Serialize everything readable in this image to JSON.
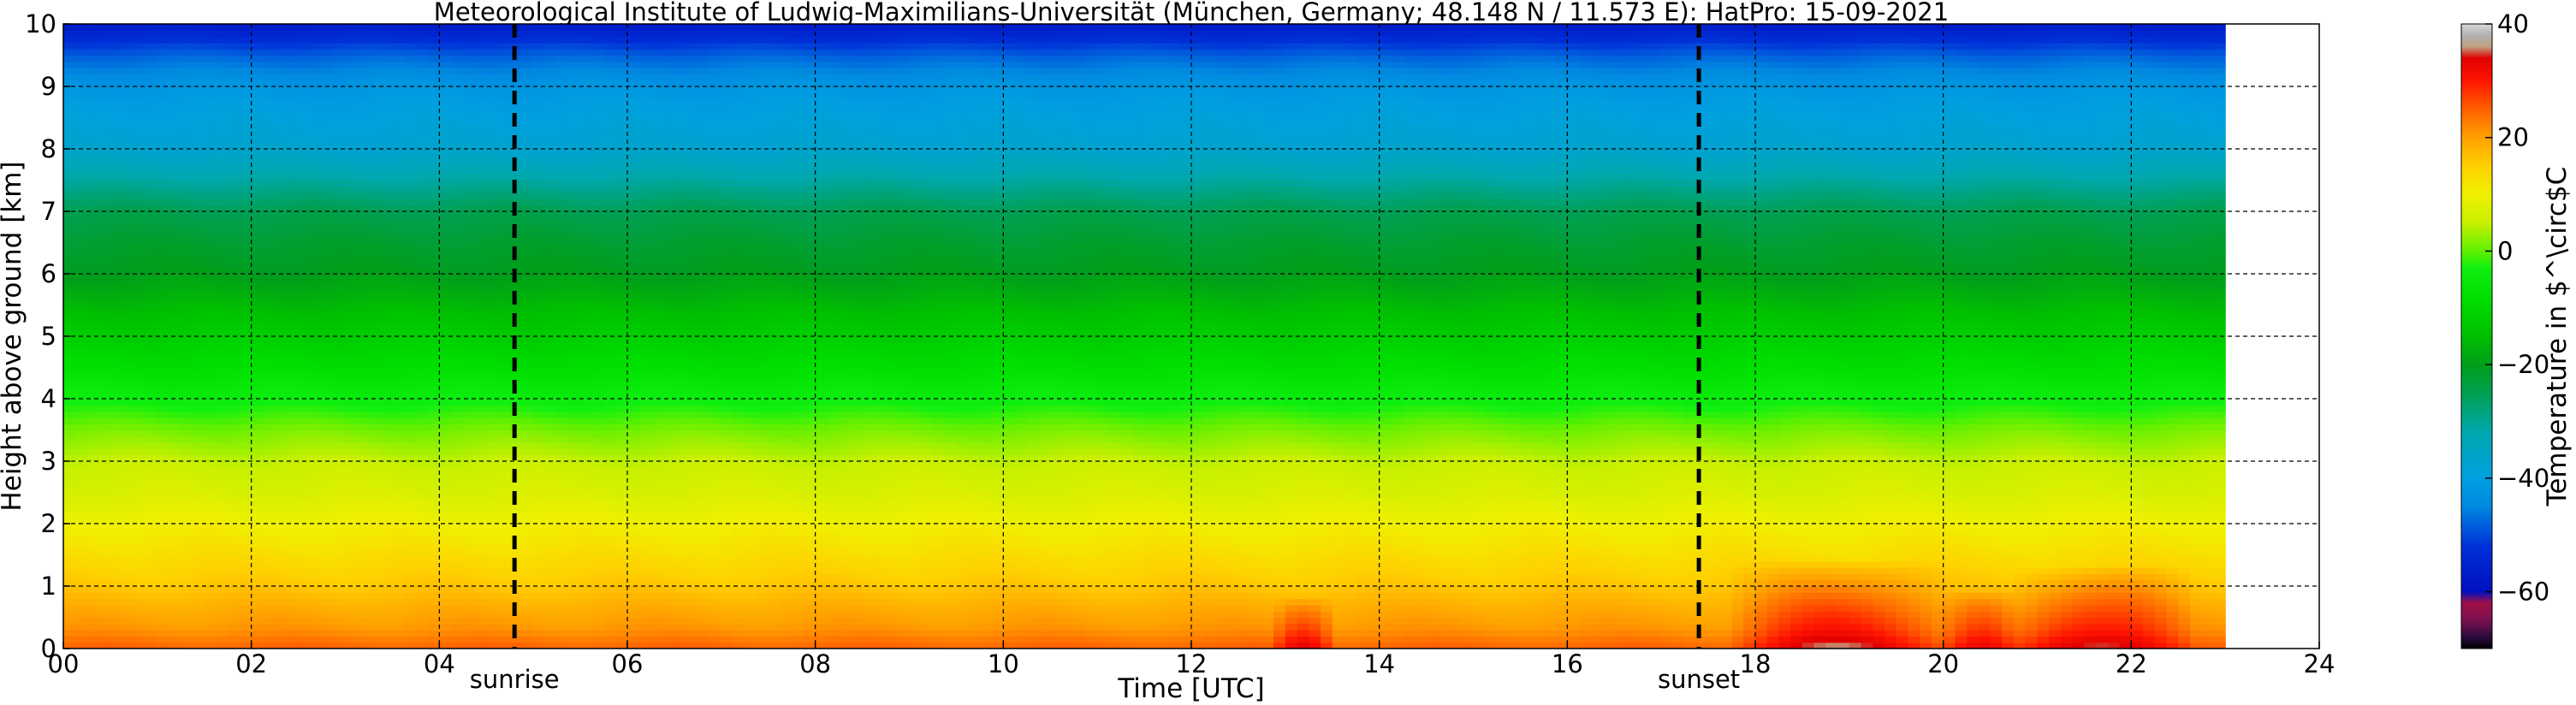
{
  "chart_data": {
    "type": "heatmap",
    "title": "Meteorological Institute of Ludwig-Maximilians-Universität (München, Germany; 48.148 N / 11.573 E):    HatPro: 15-09-2021",
    "xlabel": "Time [UTC]",
    "ylabel": "Height above ground [km]",
    "colorbar_label": "Temperature in $^\\circ$C",
    "xlim": [
      0,
      24
    ],
    "ylim": [
      0,
      10
    ],
    "x_ticks": [
      "00",
      "02",
      "04",
      "06",
      "08",
      "10",
      "12",
      "14",
      "16",
      "18",
      "20",
      "22",
      "24"
    ],
    "y_ticks": [
      "0",
      "1",
      "2",
      "3",
      "4",
      "5",
      "6",
      "7",
      "8",
      "9",
      "10"
    ],
    "colorbar_range": [
      -70,
      40
    ],
    "colorbar_ticks": [
      "40",
      "20",
      "0",
      "−20",
      "−40",
      "−60"
    ],
    "colorbar_tick_values": [
      40,
      20,
      0,
      -20,
      -40,
      -60
    ],
    "data_end_hour": 23.0,
    "grid": true,
    "annotations": [
      {
        "label": "sunrise",
        "x": 4.8
      },
      {
        "label": "sunset",
        "x": 17.4
      }
    ],
    "colormap": [
      [
        -70,
        "#000000"
      ],
      [
        -68,
        "#2b0a3d"
      ],
      [
        -65,
        "#7a1050"
      ],
      [
        -62,
        "#a01048"
      ],
      [
        -60,
        "#0010c0"
      ],
      [
        -52,
        "#0030d8"
      ],
      [
        -45,
        "#0088e0"
      ],
      [
        -40,
        "#00a0e0"
      ],
      [
        -32,
        "#00a8b0"
      ],
      [
        -25,
        "#00a050"
      ],
      [
        -20,
        "#009e1a"
      ],
      [
        -15,
        "#00c000"
      ],
      [
        -8,
        "#00e000"
      ],
      [
        -3,
        "#10f010"
      ],
      [
        0,
        "#60f000"
      ],
      [
        5,
        "#c8f000"
      ],
      [
        10,
        "#f0f000"
      ],
      [
        15,
        "#ffd000"
      ],
      [
        20,
        "#ffa000"
      ],
      [
        25,
        "#ff6000"
      ],
      [
        30,
        "#ff1500"
      ],
      [
        34,
        "#e00000"
      ],
      [
        36,
        "#c0a080"
      ],
      [
        38,
        "#b0b0b0"
      ],
      [
        40,
        "#d8d8d8"
      ]
    ],
    "temperature_profile_heights_km": [
      0,
      0.3,
      0.6,
      1,
      1.5,
      2,
      2.5,
      3,
      3.5,
      4,
      5,
      6,
      6.5,
      7,
      7.5,
      8,
      9,
      9.5,
      10
    ],
    "temperature_profile_c": [
      25,
      21,
      19,
      16,
      13,
      10,
      7,
      5,
      1,
      -4,
      -12,
      -20,
      -22,
      -25,
      -31,
      -37,
      -42,
      -48,
      -57
    ],
    "warm_events": [
      {
        "center_hour": 13.2,
        "half_width_hours": 0.35,
        "top_km": 0.8,
        "amplitude_c": 9
      },
      {
        "center_hour": 18.9,
        "half_width_hours": 1.2,
        "top_km": 1.4,
        "amplitude_c": 11
      },
      {
        "center_hour": 20.4,
        "half_width_hours": 0.45,
        "top_km": 0.9,
        "amplitude_c": 8
      },
      {
        "center_hour": 21.7,
        "half_width_hours": 1.0,
        "top_km": 1.3,
        "amplitude_c": 11
      }
    ]
  }
}
